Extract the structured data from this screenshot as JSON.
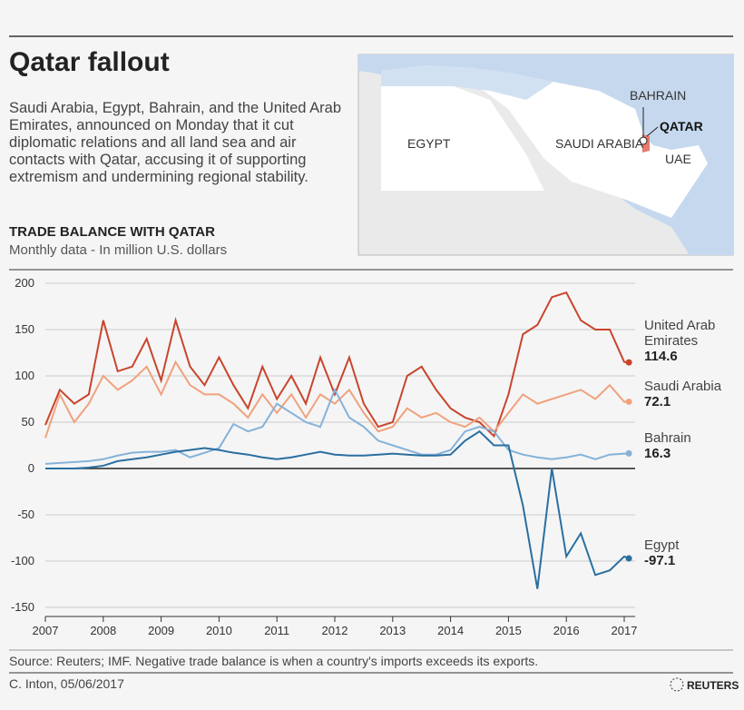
{
  "header": {
    "title": "Qatar fallout",
    "description": "Saudi Arabia, Egypt, Bahrain, and the United Arab Emirates, announced on Monday that it cut diplomatic relations and all land sea and air contacts with Qatar, accusing it of supporting extremism and undermining regional stability."
  },
  "map": {
    "labels": [
      "EGYPT",
      "SAUDI ARABIA",
      "BAHRAIN",
      "QATAR",
      "UAE"
    ]
  },
  "chart_data": {
    "type": "line",
    "title": "TRADE BALANCE WITH QATAR",
    "subtitle": "Monthly data - In million U.S. dollars",
    "x": [
      2007,
      2007.25,
      2007.5,
      2007.75,
      2008,
      2008.25,
      2008.5,
      2008.75,
      2009,
      2009.25,
      2009.5,
      2009.75,
      2010,
      2010.25,
      2010.5,
      2010.75,
      2011,
      2011.25,
      2011.5,
      2011.75,
      2012,
      2012.25,
      2012.5,
      2012.75,
      2013,
      2013.25,
      2013.5,
      2013.75,
      2014,
      2014.25,
      2014.5,
      2014.75,
      2015,
      2015.25,
      2015.5,
      2015.75,
      2016,
      2016.25,
      2016.5,
      2016.75,
      2017,
      2017.08
    ],
    "series": [
      {
        "name": "United Arab Emirates",
        "color": "#c8452c",
        "values": [
          47,
          85,
          70,
          80,
          160,
          105,
          110,
          140,
          95,
          160,
          110,
          90,
          120,
          90,
          65,
          110,
          75,
          100,
          70,
          120,
          80,
          120,
          70,
          45,
          50,
          100,
          110,
          85,
          65,
          55,
          50,
          35,
          80,
          145,
          155,
          185,
          190,
          160,
          150,
          150,
          115,
          114.6
        ]
      },
      {
        "name": "Saudi Arabia",
        "color": "#f0a27e",
        "values": [
          33,
          80,
          50,
          70,
          100,
          85,
          95,
          110,
          80,
          115,
          90,
          80,
          80,
          70,
          55,
          80,
          60,
          80,
          55,
          80,
          70,
          85,
          60,
          40,
          45,
          65,
          55,
          60,
          50,
          45,
          55,
          40,
          60,
          80,
          70,
          75,
          80,
          85,
          75,
          90,
          72,
          72.1
        ]
      },
      {
        "name": "Bahrain",
        "color": "#86b2d9",
        "values": [
          5,
          6,
          7,
          8,
          10,
          14,
          17,
          18,
          18,
          20,
          12,
          17,
          22,
          48,
          40,
          45,
          70,
          60,
          50,
          45,
          85,
          55,
          45,
          30,
          25,
          20,
          15,
          15,
          20,
          40,
          45,
          40,
          20,
          15,
          12,
          10,
          12,
          15,
          10,
          15,
          16,
          16.3
        ]
      },
      {
        "name": "Egypt",
        "color": "#2a6fa0",
        "values": [
          0,
          0,
          0,
          1,
          3,
          8,
          10,
          12,
          15,
          18,
          20,
          22,
          20,
          17,
          15,
          12,
          10,
          12,
          15,
          18,
          15,
          14,
          14,
          15,
          16,
          15,
          14,
          14,
          15,
          30,
          40,
          25,
          25,
          -40,
          -130,
          0,
          -95,
          -70,
          -115,
          -110,
          -95,
          -97.1
        ]
      }
    ],
    "xlim": [
      2007,
      2017.2
    ],
    "xticks": [
      2007,
      2008,
      2009,
      2010,
      2011,
      2012,
      2013,
      2014,
      2015,
      2016,
      2017
    ],
    "ylim": [
      -150,
      200
    ],
    "yticks": [
      200,
      150,
      100,
      50,
      0,
      -50,
      -100,
      -150
    ],
    "grid": true
  },
  "footer": {
    "source": "Source: Reuters; IMF. Negative trade balance is when a country's imports exceeds its exports.",
    "credit": "C. Inton,  05/06/2017",
    "brand": "REUTERS"
  }
}
